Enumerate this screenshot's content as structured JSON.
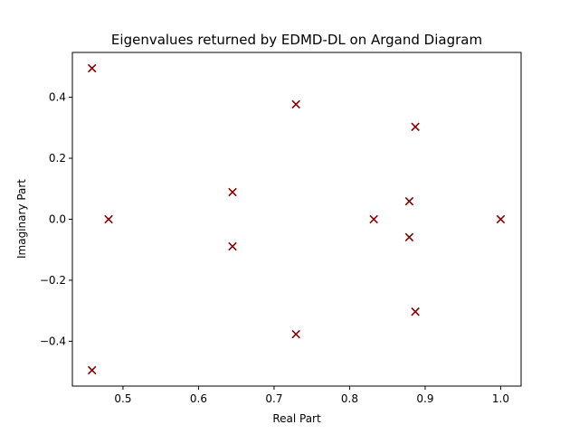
{
  "chart_data": {
    "type": "scatter",
    "title": "Eigenvalues returned by EDMD-DL on Argand Diagram",
    "xlabel": "Real Part",
    "ylabel": "Imaginary Part",
    "xlim": [
      0.433,
      1.027
    ],
    "ylim": [
      -0.547,
      0.547
    ],
    "xticks": [
      0.5,
      0.6,
      0.7,
      0.8,
      0.9,
      1.0
    ],
    "xtick_labels": [
      "0.5",
      "0.6",
      "0.7",
      "0.8",
      "0.9",
      "1.0"
    ],
    "yticks": [
      -0.4,
      -0.2,
      0.0,
      0.2,
      0.4
    ],
    "ytick_labels": [
      "−0.4",
      "−0.2",
      "0.0",
      "0.2",
      "0.4"
    ],
    "grid": false,
    "marker": "x",
    "marker_color": "#8b0000",
    "points": [
      {
        "x": 0.459,
        "y": 0.495
      },
      {
        "x": 0.459,
        "y": -0.495
      },
      {
        "x": 0.481,
        "y": 0.0
      },
      {
        "x": 0.645,
        "y": 0.089
      },
      {
        "x": 0.645,
        "y": -0.089
      },
      {
        "x": 0.729,
        "y": 0.377
      },
      {
        "x": 0.729,
        "y": -0.377
      },
      {
        "x": 0.832,
        "y": 0.0
      },
      {
        "x": 0.879,
        "y": 0.059
      },
      {
        "x": 0.879,
        "y": -0.059
      },
      {
        "x": 0.887,
        "y": 0.303
      },
      {
        "x": 0.887,
        "y": -0.303
      },
      {
        "x": 1.0,
        "y": 0.0
      }
    ]
  }
}
